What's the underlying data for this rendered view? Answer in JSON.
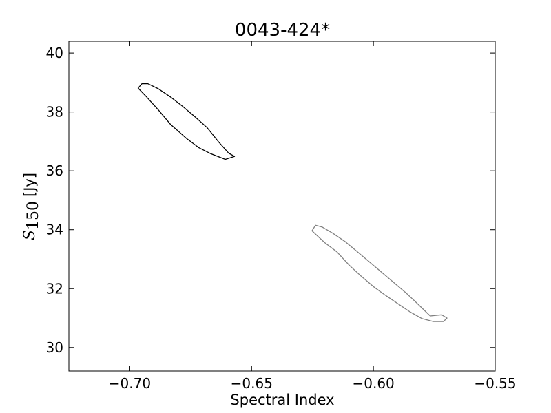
{
  "chart_data": {
    "type": "line",
    "title": "0043-424*",
    "xlabel": "Spectral Index",
    "ylabel": {
      "symbol": "S",
      "subscript": "150",
      "unit": "[Jy]"
    },
    "xlim": [
      -0.725,
      -0.55
    ],
    "ylim": [
      29.2,
      40.4
    ],
    "xticks": [
      -0.7,
      -0.65,
      -0.6,
      -0.55
    ],
    "xtick_labels": [
      "−0.70",
      "−0.65",
      "−0.60",
      "−0.55"
    ],
    "yticks": [
      30,
      32,
      34,
      36,
      38,
      40
    ],
    "ytick_labels": [
      "30",
      "32",
      "34",
      "36",
      "38",
      "40"
    ],
    "grid": false,
    "series": [
      {
        "color": "#000000",
        "closed": true,
        "points": [
          [
            -0.6966,
            38.81
          ],
          [
            -0.695,
            38.96
          ],
          [
            -0.6926,
            38.96
          ],
          [
            -0.6883,
            38.79
          ],
          [
            -0.6833,
            38.51
          ],
          [
            -0.6783,
            38.19
          ],
          [
            -0.6733,
            37.84
          ],
          [
            -0.6683,
            37.47
          ],
          [
            -0.6633,
            36.96
          ],
          [
            -0.6594,
            36.6
          ],
          [
            -0.657,
            36.49
          ],
          [
            -0.6608,
            36.39
          ],
          [
            -0.6667,
            36.58
          ],
          [
            -0.6717,
            36.79
          ],
          [
            -0.6767,
            37.1
          ],
          [
            -0.6833,
            37.58
          ],
          [
            -0.6883,
            38.07
          ],
          [
            -0.6933,
            38.53
          ]
        ]
      },
      {
        "color": "#808080",
        "closed": true,
        "points": [
          [
            -0.6252,
            33.96
          ],
          [
            -0.6238,
            34.15
          ],
          [
            -0.621,
            34.09
          ],
          [
            -0.6167,
            33.88
          ],
          [
            -0.6117,
            33.6
          ],
          [
            -0.6067,
            33.26
          ],
          [
            -0.6017,
            32.91
          ],
          [
            -0.5967,
            32.56
          ],
          [
            -0.5917,
            32.21
          ],
          [
            -0.5867,
            31.86
          ],
          [
            -0.5817,
            31.47
          ],
          [
            -0.5767,
            31.07
          ],
          [
            -0.572,
            31.11
          ],
          [
            -0.5698,
            31.0
          ],
          [
            -0.5712,
            30.88
          ],
          [
            -0.5754,
            30.88
          ],
          [
            -0.58,
            30.98
          ],
          [
            -0.585,
            31.21
          ],
          [
            -0.59,
            31.49
          ],
          [
            -0.595,
            31.77
          ],
          [
            -0.6,
            32.07
          ],
          [
            -0.605,
            32.42
          ],
          [
            -0.61,
            32.8
          ],
          [
            -0.615,
            33.25
          ],
          [
            -0.62,
            33.56
          ]
        ]
      }
    ]
  }
}
